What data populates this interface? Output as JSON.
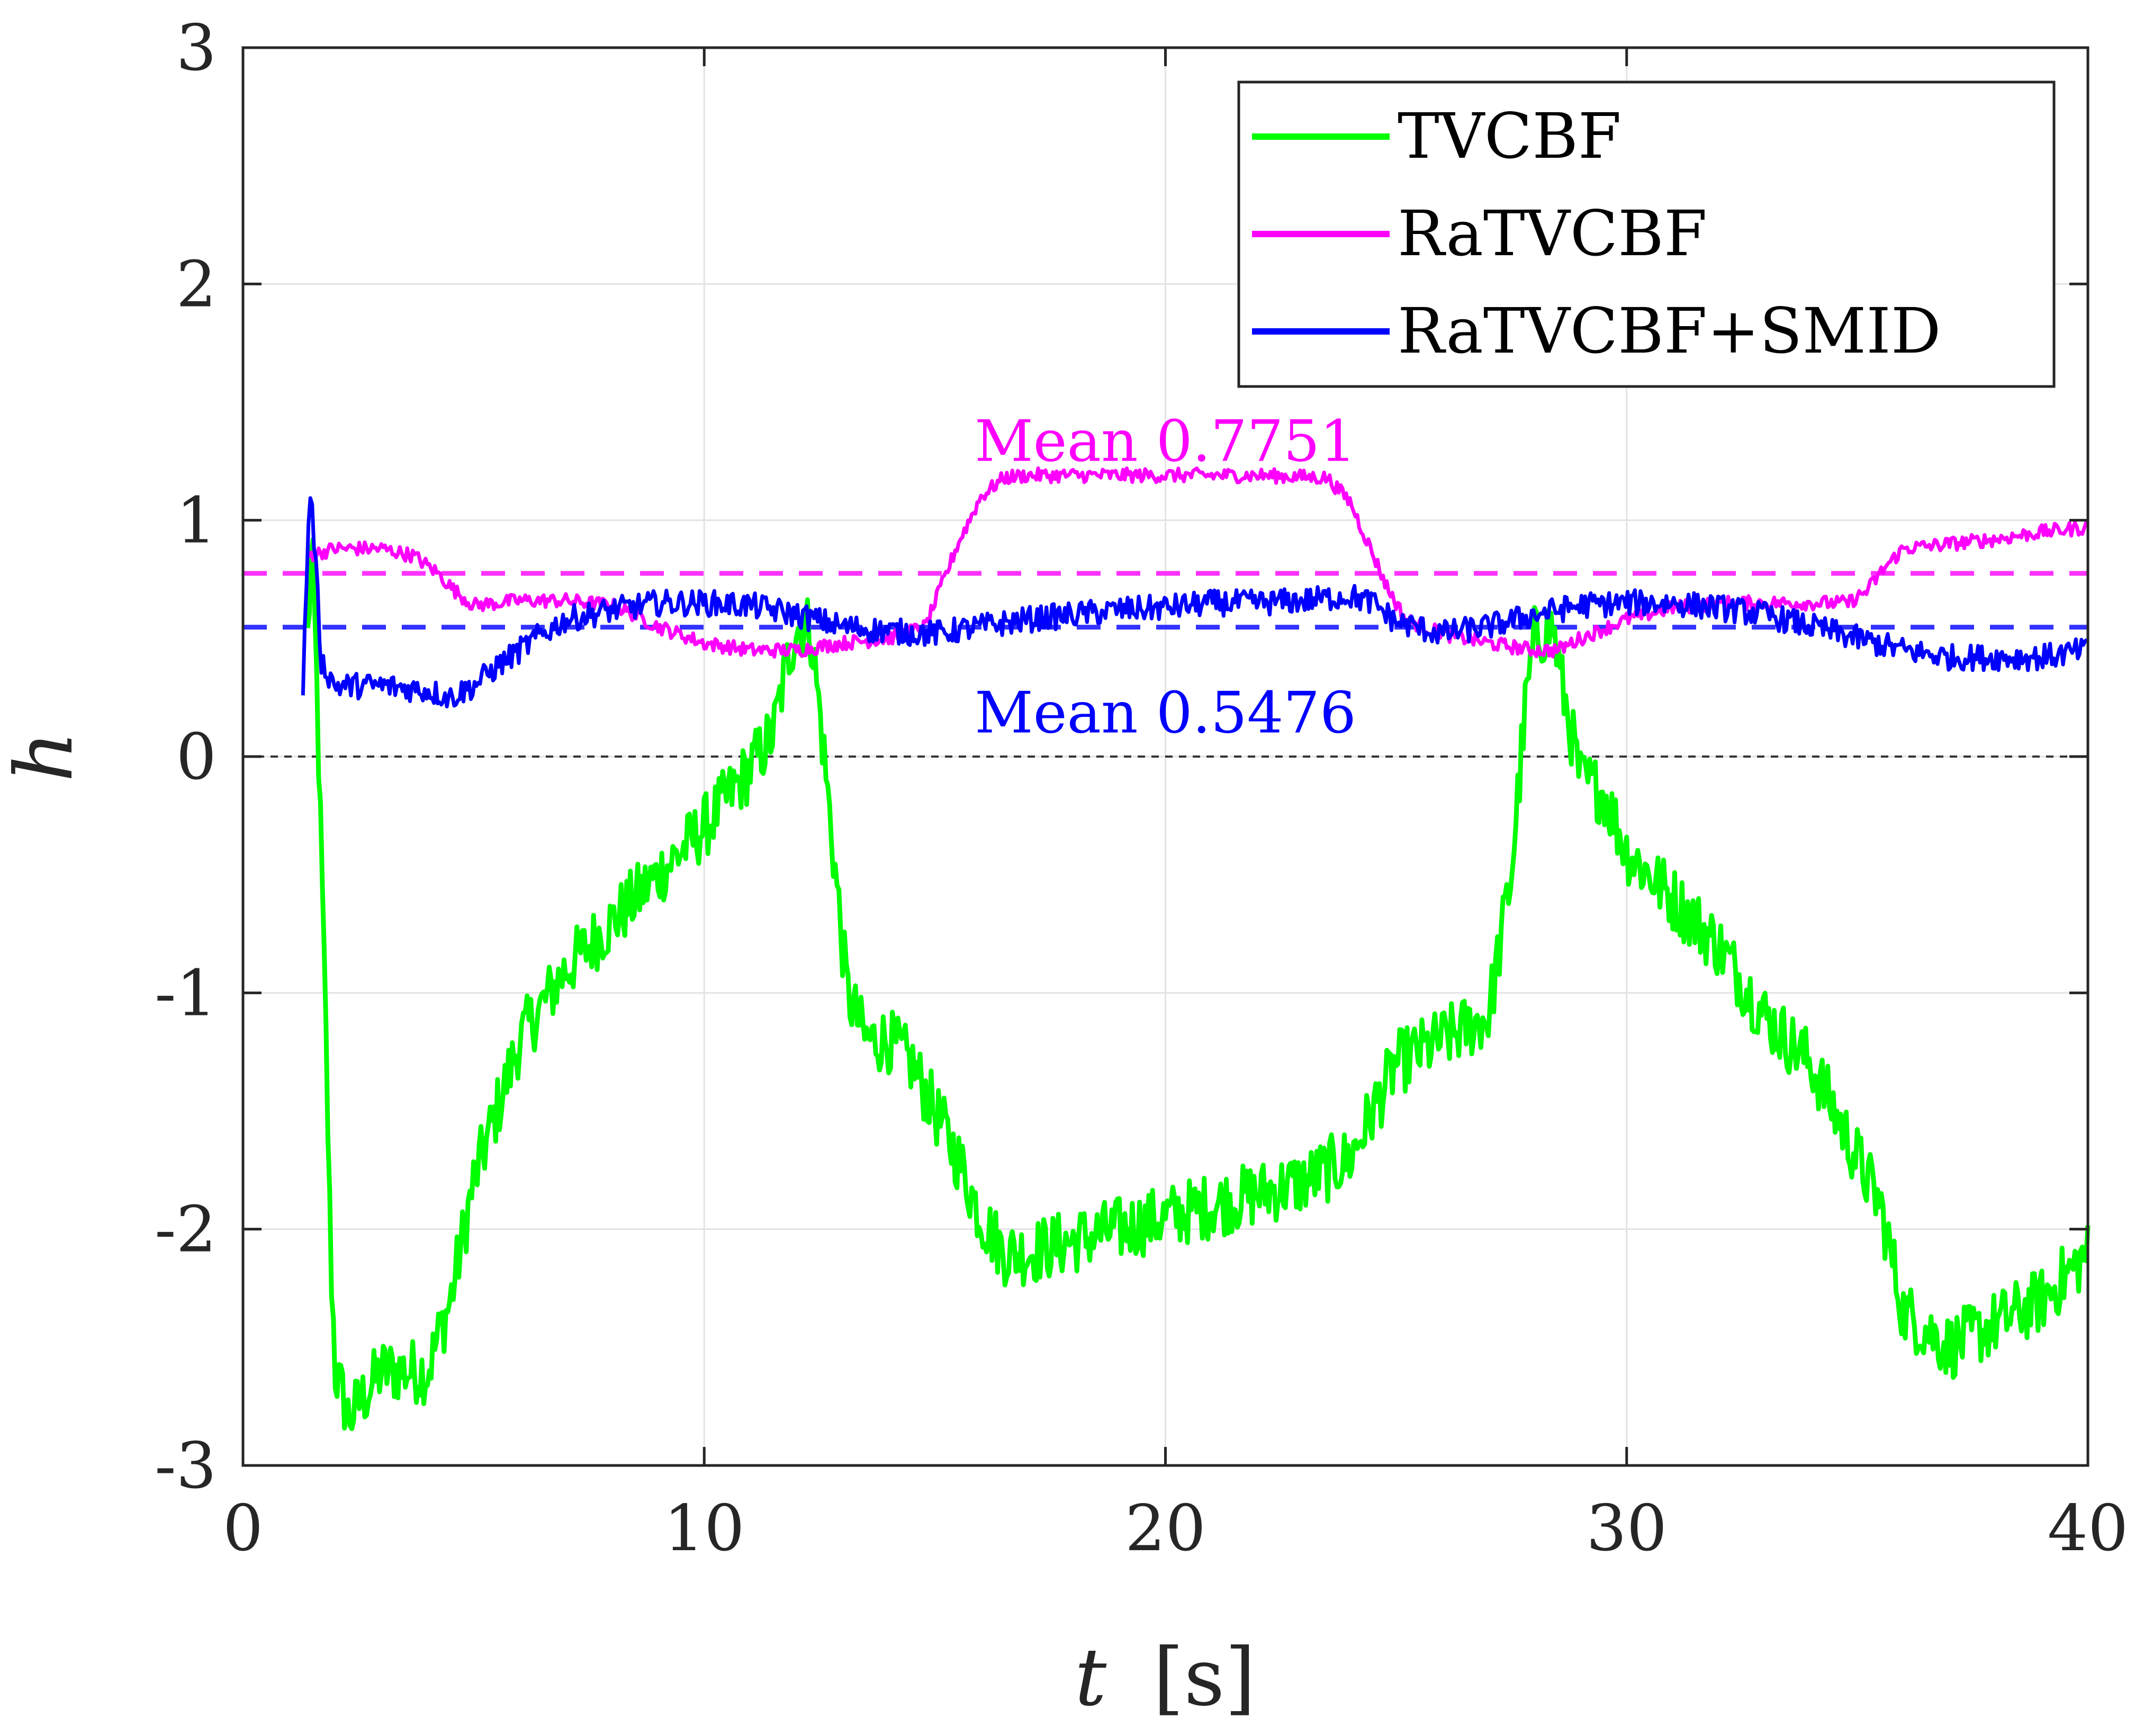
{
  "chart_data": {
    "type": "line",
    "xlabel_symbol": "t",
    "xlabel_unit": "[s]",
    "ylabel": "h",
    "xlim": [
      0,
      40
    ],
    "ylim": [
      -3,
      3
    ],
    "xticks": [
      0,
      10,
      20,
      30,
      40
    ],
    "yticks": [
      -3,
      -2,
      -1,
      0,
      1,
      2,
      3
    ],
    "xtick_labels": [
      "0",
      "10",
      "20",
      "30",
      "40"
    ],
    "ytick_labels": [
      "-3",
      "-2",
      "-1",
      "0",
      "1",
      "2",
      "3"
    ],
    "grid": true,
    "legend_position": "top-right",
    "zero_line": {
      "y": 0,
      "color": "#333333",
      "style": "dotted"
    },
    "series": [
      {
        "name": "TVCBF",
        "color": "#00ff00",
        "noise": 0.14,
        "points": [
          [
            1.4,
            0.5
          ],
          [
            1.5,
            0.9
          ],
          [
            1.6,
            0.3
          ],
          [
            1.8,
            -1.2
          ],
          [
            1.9,
            -2.1
          ],
          [
            2.0,
            -2.6
          ],
          [
            2.3,
            -2.8
          ],
          [
            3.0,
            -2.6
          ],
          [
            4.0,
            -2.6
          ],
          [
            4.5,
            -2.3
          ],
          [
            5.0,
            -1.8
          ],
          [
            6.0,
            -1.2
          ],
          [
            7.0,
            -0.9
          ],
          [
            8.0,
            -0.7
          ],
          [
            9.0,
            -0.5
          ],
          [
            10.0,
            -0.3
          ],
          [
            11.0,
            -0.05
          ],
          [
            11.5,
            0.1
          ],
          [
            11.8,
            0.4
          ],
          [
            12.0,
            0.55
          ],
          [
            12.3,
            0.55
          ],
          [
            12.5,
            0.2
          ],
          [
            12.8,
            -0.4
          ],
          [
            13.1,
            -1.0
          ],
          [
            13.5,
            -1.2
          ],
          [
            14.0,
            -1.2
          ],
          [
            14.5,
            -1.3
          ],
          [
            15.0,
            -1.5
          ],
          [
            15.5,
            -1.7
          ],
          [
            16.0,
            -1.95
          ],
          [
            16.5,
            -2.1
          ],
          [
            17.0,
            -2.1
          ],
          [
            18.0,
            -2.05
          ],
          [
            19.0,
            -2.0
          ],
          [
            20.0,
            -1.95
          ],
          [
            21.0,
            -1.9
          ],
          [
            22.0,
            -1.85
          ],
          [
            23.0,
            -1.8
          ],
          [
            24.0,
            -1.7
          ],
          [
            24.5,
            -1.5
          ],
          [
            25.0,
            -1.3
          ],
          [
            26.0,
            -1.2
          ],
          [
            27.0,
            -1.1
          ],
          [
            27.5,
            -0.5
          ],
          [
            27.8,
            0.2
          ],
          [
            28.0,
            0.5
          ],
          [
            28.4,
            0.55
          ],
          [
            28.6,
            0.3
          ],
          [
            29.0,
            -0.1
          ],
          [
            29.5,
            -0.15
          ],
          [
            30.0,
            -0.4
          ],
          [
            31.0,
            -0.6
          ],
          [
            32.0,
            -0.8
          ],
          [
            33.0,
            -1.1
          ],
          [
            34.0,
            -1.3
          ],
          [
            34.5,
            -1.5
          ],
          [
            35.0,
            -1.7
          ],
          [
            35.5,
            -1.9
          ],
          [
            36.0,
            -2.35
          ],
          [
            37.0,
            -2.5
          ],
          [
            38.0,
            -2.4
          ],
          [
            39.0,
            -2.3
          ],
          [
            40.0,
            -2.1
          ]
        ]
      },
      {
        "name": "RaTVCBF",
        "color": "#ff00ff",
        "noise": 0.03,
        "points": [
          [
            1.4,
            0.85
          ],
          [
            2.0,
            0.88
          ],
          [
            3.0,
            0.88
          ],
          [
            3.7,
            0.85
          ],
          [
            4.2,
            0.78
          ],
          [
            4.6,
            0.7
          ],
          [
            5.0,
            0.64
          ],
          [
            6.0,
            0.66
          ],
          [
            7.0,
            0.66
          ],
          [
            8.0,
            0.64
          ],
          [
            8.5,
            0.6
          ],
          [
            9.0,
            0.55
          ],
          [
            10.0,
            0.48
          ],
          [
            11.0,
            0.45
          ],
          [
            12.0,
            0.45
          ],
          [
            13.0,
            0.48
          ],
          [
            14.0,
            0.5
          ],
          [
            14.8,
            0.55
          ],
          [
            15.0,
            0.65
          ],
          [
            15.5,
            0.9
          ],
          [
            16.0,
            1.1
          ],
          [
            16.5,
            1.18
          ],
          [
            17.0,
            1.19
          ],
          [
            18.0,
            1.19
          ],
          [
            20.0,
            1.19
          ],
          [
            22.0,
            1.19
          ],
          [
            23.5,
            1.18
          ],
          [
            24.0,
            1.08
          ],
          [
            24.4,
            0.9
          ],
          [
            24.8,
            0.72
          ],
          [
            25.2,
            0.58
          ],
          [
            26.0,
            0.52
          ],
          [
            27.0,
            0.48
          ],
          [
            28.0,
            0.45
          ],
          [
            28.5,
            0.45
          ],
          [
            29.0,
            0.5
          ],
          [
            30.0,
            0.58
          ],
          [
            31.0,
            0.63
          ],
          [
            32.0,
            0.65
          ],
          [
            33.0,
            0.65
          ],
          [
            34.0,
            0.65
          ],
          [
            34.8,
            0.65
          ],
          [
            35.2,
            0.7
          ],
          [
            35.6,
            0.8
          ],
          [
            36.0,
            0.88
          ],
          [
            37.0,
            0.9
          ],
          [
            38.0,
            0.92
          ],
          [
            39.0,
            0.95
          ],
          [
            40.0,
            0.97
          ]
        ]
      },
      {
        "name": "RaTVCBF+SMID",
        "color": "#0000ff",
        "noise": 0.055,
        "points": [
          [
            1.3,
            0.3
          ],
          [
            1.45,
            1.15
          ],
          [
            1.55,
            0.9
          ],
          [
            1.7,
            0.4
          ],
          [
            2.0,
            0.3
          ],
          [
            3.0,
            0.3
          ],
          [
            4.0,
            0.28
          ],
          [
            4.5,
            0.25
          ],
          [
            5.0,
            0.3
          ],
          [
            5.5,
            0.38
          ],
          [
            6.0,
            0.45
          ],
          [
            6.5,
            0.52
          ],
          [
            7.0,
            0.58
          ],
          [
            8.0,
            0.62
          ],
          [
            9.0,
            0.65
          ],
          [
            10.0,
            0.65
          ],
          [
            11.0,
            0.64
          ],
          [
            12.0,
            0.6
          ],
          [
            13.0,
            0.55
          ],
          [
            14.0,
            0.53
          ],
          [
            15.0,
            0.52
          ],
          [
            16.0,
            0.55
          ],
          [
            17.0,
            0.58
          ],
          [
            18.0,
            0.6
          ],
          [
            19.0,
            0.62
          ],
          [
            20.0,
            0.63
          ],
          [
            21.0,
            0.65
          ],
          [
            22.0,
            0.65
          ],
          [
            23.0,
            0.66
          ],
          [
            24.0,
            0.68
          ],
          [
            24.5,
            0.65
          ],
          [
            25.0,
            0.57
          ],
          [
            26.0,
            0.52
          ],
          [
            27.0,
            0.55
          ],
          [
            28.0,
            0.6
          ],
          [
            29.0,
            0.64
          ],
          [
            30.0,
            0.65
          ],
          [
            31.0,
            0.65
          ],
          [
            32.0,
            0.63
          ],
          [
            33.0,
            0.6
          ],
          [
            34.0,
            0.55
          ],
          [
            35.0,
            0.5
          ],
          [
            36.0,
            0.45
          ],
          [
            37.0,
            0.42
          ],
          [
            38.0,
            0.42
          ],
          [
            39.0,
            0.42
          ],
          [
            40.0,
            0.45
          ]
        ]
      }
    ],
    "mean_lines": [
      {
        "series": "RaTVCBF",
        "value": 0.7751,
        "color": "#ff33ff",
        "style": "dashed"
      },
      {
        "series": "RaTVCBF+SMID",
        "value": 0.5476,
        "color": "#3333ff",
        "style": "dashed"
      }
    ],
    "annotations": [
      {
        "text": "Mean 0.7751",
        "color": "#ff00ff",
        "x": 20,
        "y": 1.33
      },
      {
        "text": "Mean 0.5476",
        "color": "#0000ff",
        "x": 20,
        "y": 0.18
      }
    ]
  }
}
